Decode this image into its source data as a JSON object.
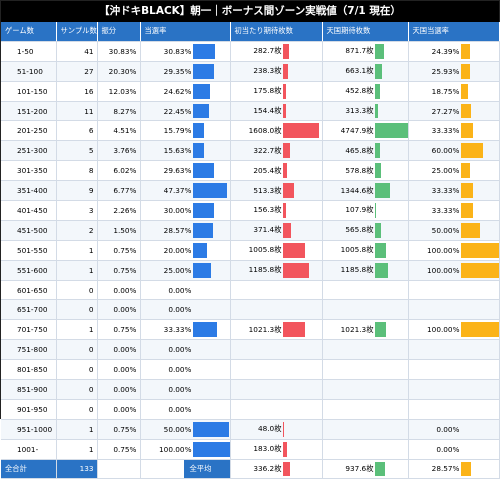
{
  "title": "【沖ドキBLACK】朝一｜ボーナス間ゾーン実戦値（7/1 現在）",
  "headers": [
    "ゲーム数",
    "サンプル数",
    "振分",
    "当選率",
    "初当たり期待枚数",
    "天国期待枚数",
    "天国当選率"
  ],
  "colors": {
    "header": "#2a73c5",
    "win_bar": "#2c7be5",
    "first_bar": "#f2555d",
    "heaven_bar": "#5bbf7a",
    "heaven_rate_bar": "#fbb318"
  },
  "rows": [
    {
      "range": "1-50",
      "samples": "41",
      "dist": "30.83%",
      "win": "30.83%",
      "win_v": 30.83,
      "first": "282.7枚",
      "first_v": 282.7,
      "heaven": "871.7枚",
      "heaven_v": 871.7,
      "hrate": "24.39%",
      "hrate_v": 24.39
    },
    {
      "range": "51-100",
      "samples": "27",
      "dist": "20.30%",
      "win": "29.35%",
      "win_v": 29.35,
      "first": "238.3枚",
      "first_v": 238.3,
      "heaven": "663.1枚",
      "heaven_v": 663.1,
      "hrate": "25.93%",
      "hrate_v": 25.93
    },
    {
      "range": "101-150",
      "samples": "16",
      "dist": "12.03%",
      "win": "24.62%",
      "win_v": 24.62,
      "first": "175.8枚",
      "first_v": 175.8,
      "heaven": "452.8枚",
      "heaven_v": 452.8,
      "hrate": "18.75%",
      "hrate_v": 18.75
    },
    {
      "range": "151-200",
      "samples": "11",
      "dist": "8.27%",
      "win": "22.45%",
      "win_v": 22.45,
      "first": "154.4枚",
      "first_v": 154.4,
      "heaven": "313.3枚",
      "heaven_v": 313.3,
      "hrate": "27.27%",
      "hrate_v": 27.27
    },
    {
      "range": "201-250",
      "samples": "6",
      "dist": "4.51%",
      "win": "15.79%",
      "win_v": 15.79,
      "first": "1608.0枚",
      "first_v": 1608.0,
      "heaven": "4747.9枚",
      "heaven_v": 4747.9,
      "hrate": "33.33%",
      "hrate_v": 33.33
    },
    {
      "range": "251-300",
      "samples": "5",
      "dist": "3.76%",
      "win": "15.63%",
      "win_v": 15.63,
      "first": "322.7枚",
      "first_v": 322.7,
      "heaven": "465.8枚",
      "heaven_v": 465.8,
      "hrate": "60.00%",
      "hrate_v": 60.0
    },
    {
      "range": "301-350",
      "samples": "8",
      "dist": "6.02%",
      "win": "29.63%",
      "win_v": 29.63,
      "first": "205.4枚",
      "first_v": 205.4,
      "heaven": "578.8枚",
      "heaven_v": 578.8,
      "hrate": "25.00%",
      "hrate_v": 25.0
    },
    {
      "range": "351-400",
      "samples": "9",
      "dist": "6.77%",
      "win": "47.37%",
      "win_v": 47.37,
      "first": "513.3枚",
      "first_v": 513.3,
      "heaven": "1344.6枚",
      "heaven_v": 1344.6,
      "hrate": "33.33%",
      "hrate_v": 33.33
    },
    {
      "range": "401-450",
      "samples": "3",
      "dist": "2.26%",
      "win": "30.00%",
      "win_v": 30.0,
      "first": "156.3枚",
      "first_v": 156.3,
      "heaven": "107.9枚",
      "heaven_v": 107.9,
      "hrate": "33.33%",
      "hrate_v": 33.33
    },
    {
      "range": "451-500",
      "samples": "2",
      "dist": "1.50%",
      "win": "28.57%",
      "win_v": 28.57,
      "first": "371.4枚",
      "first_v": 371.4,
      "heaven": "565.8枚",
      "heaven_v": 565.8,
      "hrate": "50.00%",
      "hrate_v": 50.0
    },
    {
      "range": "501-550",
      "samples": "1",
      "dist": "0.75%",
      "win": "20.00%",
      "win_v": 20.0,
      "first": "1005.8枚",
      "first_v": 1005.8,
      "heaven": "1005.8枚",
      "heaven_v": 1005.8,
      "hrate": "100.00%",
      "hrate_v": 100.0
    },
    {
      "range": "551-600",
      "samples": "1",
      "dist": "0.75%",
      "win": "25.00%",
      "win_v": 25.0,
      "first": "1185.8枚",
      "first_v": 1185.8,
      "heaven": "1185.8枚",
      "heaven_v": 1185.8,
      "hrate": "100.00%",
      "hrate_v": 100.0
    },
    {
      "range": "601-650",
      "samples": "0",
      "dist": "0.00%",
      "win": "0.00%",
      "win_v": 0,
      "first": "",
      "first_v": 0,
      "heaven": "",
      "heaven_v": 0,
      "hrate": "",
      "hrate_v": 0
    },
    {
      "range": "651-700",
      "samples": "0",
      "dist": "0.00%",
      "win": "0.00%",
      "win_v": 0,
      "first": "",
      "first_v": 0,
      "heaven": "",
      "heaven_v": 0,
      "hrate": "",
      "hrate_v": 0
    },
    {
      "range": "701-750",
      "samples": "1",
      "dist": "0.75%",
      "win": "33.33%",
      "win_v": 33.33,
      "first": "1021.3枚",
      "first_v": 1021.3,
      "heaven": "1021.3枚",
      "heaven_v": 1021.3,
      "hrate": "100.00%",
      "hrate_v": 100.0
    },
    {
      "range": "751-800",
      "samples": "0",
      "dist": "0.00%",
      "win": "0.00%",
      "win_v": 0,
      "first": "",
      "first_v": 0,
      "heaven": "",
      "heaven_v": 0,
      "hrate": "",
      "hrate_v": 0
    },
    {
      "range": "801-850",
      "samples": "0",
      "dist": "0.00%",
      "win": "0.00%",
      "win_v": 0,
      "first": "",
      "first_v": 0,
      "heaven": "",
      "heaven_v": 0,
      "hrate": "",
      "hrate_v": 0
    },
    {
      "range": "851-900",
      "samples": "0",
      "dist": "0.00%",
      "win": "0.00%",
      "win_v": 0,
      "first": "",
      "first_v": 0,
      "heaven": "",
      "heaven_v": 0,
      "hrate": "",
      "hrate_v": 0
    },
    {
      "range": "901-950",
      "samples": "0",
      "dist": "0.00%",
      "win": "0.00%",
      "win_v": 0,
      "first": "",
      "first_v": 0,
      "heaven": "",
      "heaven_v": 0,
      "hrate": "",
      "hrate_v": 0
    },
    {
      "range": "951-1000",
      "samples": "1",
      "dist": "0.75%",
      "win": "50.00%",
      "win_v": 50.0,
      "first": "48.0枚",
      "first_v": 48.0,
      "heaven": "",
      "heaven_v": 0,
      "hrate": "0.00%",
      "hrate_v": 0
    },
    {
      "range": "1001-",
      "samples": "1",
      "dist": "0.75%",
      "win": "100.00%",
      "win_v": 100.0,
      "first": "183.0枚",
      "first_v": 183.0,
      "heaven": "",
      "heaven_v": 0,
      "hrate": "0.00%",
      "hrate_v": 0
    }
  ],
  "footer": {
    "total_label": "全合計",
    "total_samples": "133",
    "avg_label": "全平均",
    "first_avg": "336.2枚",
    "first_avg_v": 336.2,
    "heaven_avg": "937.6枚",
    "heaven_avg_v": 937.6,
    "hrate_avg": "28.57%",
    "hrate_avg_v": 28.57
  }
}
